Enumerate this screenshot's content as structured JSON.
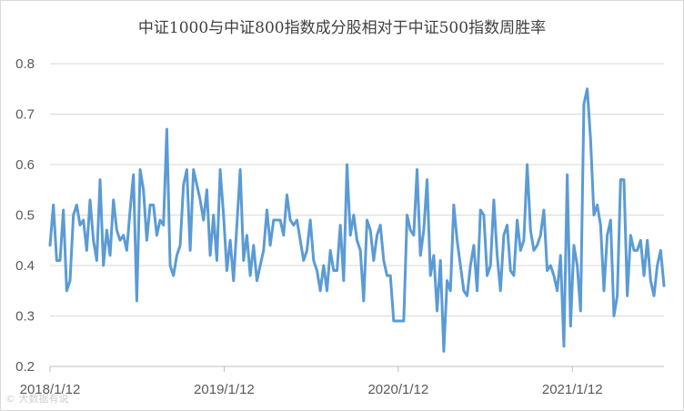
{
  "chart_data": {
    "type": "line",
    "title": "中证1000与中证800指数成分股相对于中证500指数周胜率",
    "xlabel": "",
    "ylabel": "",
    "ylim": [
      0.2,
      0.8
    ],
    "yticks": [
      "0.2",
      "0.3",
      "0.4",
      "0.5",
      "0.6",
      "0.7",
      "0.8"
    ],
    "xticks": [
      "2018/1/12",
      "2019/1/12",
      "2020/1/12",
      "2021/1/12"
    ],
    "x_start": "2018/1/12",
    "x_interval": "weekly",
    "grid": "horizontal",
    "legend": "none",
    "series_color": "#5b9bd5",
    "series": [
      {
        "values": [
          0.44,
          0.52,
          0.41,
          0.41,
          0.51,
          0.35,
          0.37,
          0.5,
          0.52,
          0.48,
          0.49,
          0.43,
          0.53,
          0.45,
          0.41,
          0.57,
          0.4,
          0.47,
          0.42,
          0.53,
          0.47,
          0.45,
          0.46,
          0.43,
          0.51,
          0.58,
          0.33,
          0.59,
          0.55,
          0.45,
          0.52,
          0.52,
          0.46,
          0.49,
          0.48,
          0.67,
          0.4,
          0.38,
          0.42,
          0.44,
          0.56,
          0.59,
          0.43,
          0.59,
          0.56,
          0.53,
          0.49,
          0.55,
          0.42,
          0.5,
          0.41,
          0.59,
          0.5,
          0.39,
          0.45,
          0.37,
          0.48,
          0.59,
          0.41,
          0.46,
          0.38,
          0.44,
          0.37,
          0.4,
          0.43,
          0.51,
          0.44,
          0.49,
          0.49,
          0.49,
          0.46,
          0.54,
          0.49,
          0.48,
          0.49,
          0.45,
          0.41,
          0.43,
          0.49,
          0.41,
          0.39,
          0.35,
          0.4,
          0.35,
          0.43,
          0.39,
          0.39,
          0.48,
          0.37,
          0.6,
          0.46,
          0.5,
          0.45,
          0.43,
          0.33,
          0.49,
          0.47,
          0.41,
          0.46,
          0.48,
          0.41,
          0.38,
          0.38,
          0.29,
          0.29,
          0.29,
          0.29,
          0.5,
          0.47,
          0.46,
          0.59,
          0.42,
          0.47,
          0.57,
          0.38,
          0.42,
          0.31,
          0.41,
          0.23,
          0.37,
          0.35,
          0.52,
          0.45,
          0.4,
          0.35,
          0.34,
          0.4,
          0.44,
          0.35,
          0.51,
          0.5,
          0.38,
          0.4,
          0.53,
          0.42,
          0.35,
          0.46,
          0.48,
          0.39,
          0.38,
          0.49,
          0.43,
          0.45,
          0.6,
          0.47,
          0.43,
          0.44,
          0.46,
          0.51,
          0.39,
          0.4,
          0.38,
          0.35,
          0.42,
          0.24,
          0.58,
          0.28,
          0.44,
          0.4,
          0.31,
          0.72,
          0.75,
          0.65,
          0.5,
          0.52,
          0.48,
          0.35,
          0.46,
          0.49,
          0.3,
          0.34,
          0.57,
          0.57,
          0.34,
          0.46,
          0.43,
          0.43,
          0.45,
          0.38,
          0.45,
          0.37,
          0.34,
          0.4,
          0.43,
          0.36
        ]
      }
    ]
  },
  "watermark": "© 大数据有说"
}
